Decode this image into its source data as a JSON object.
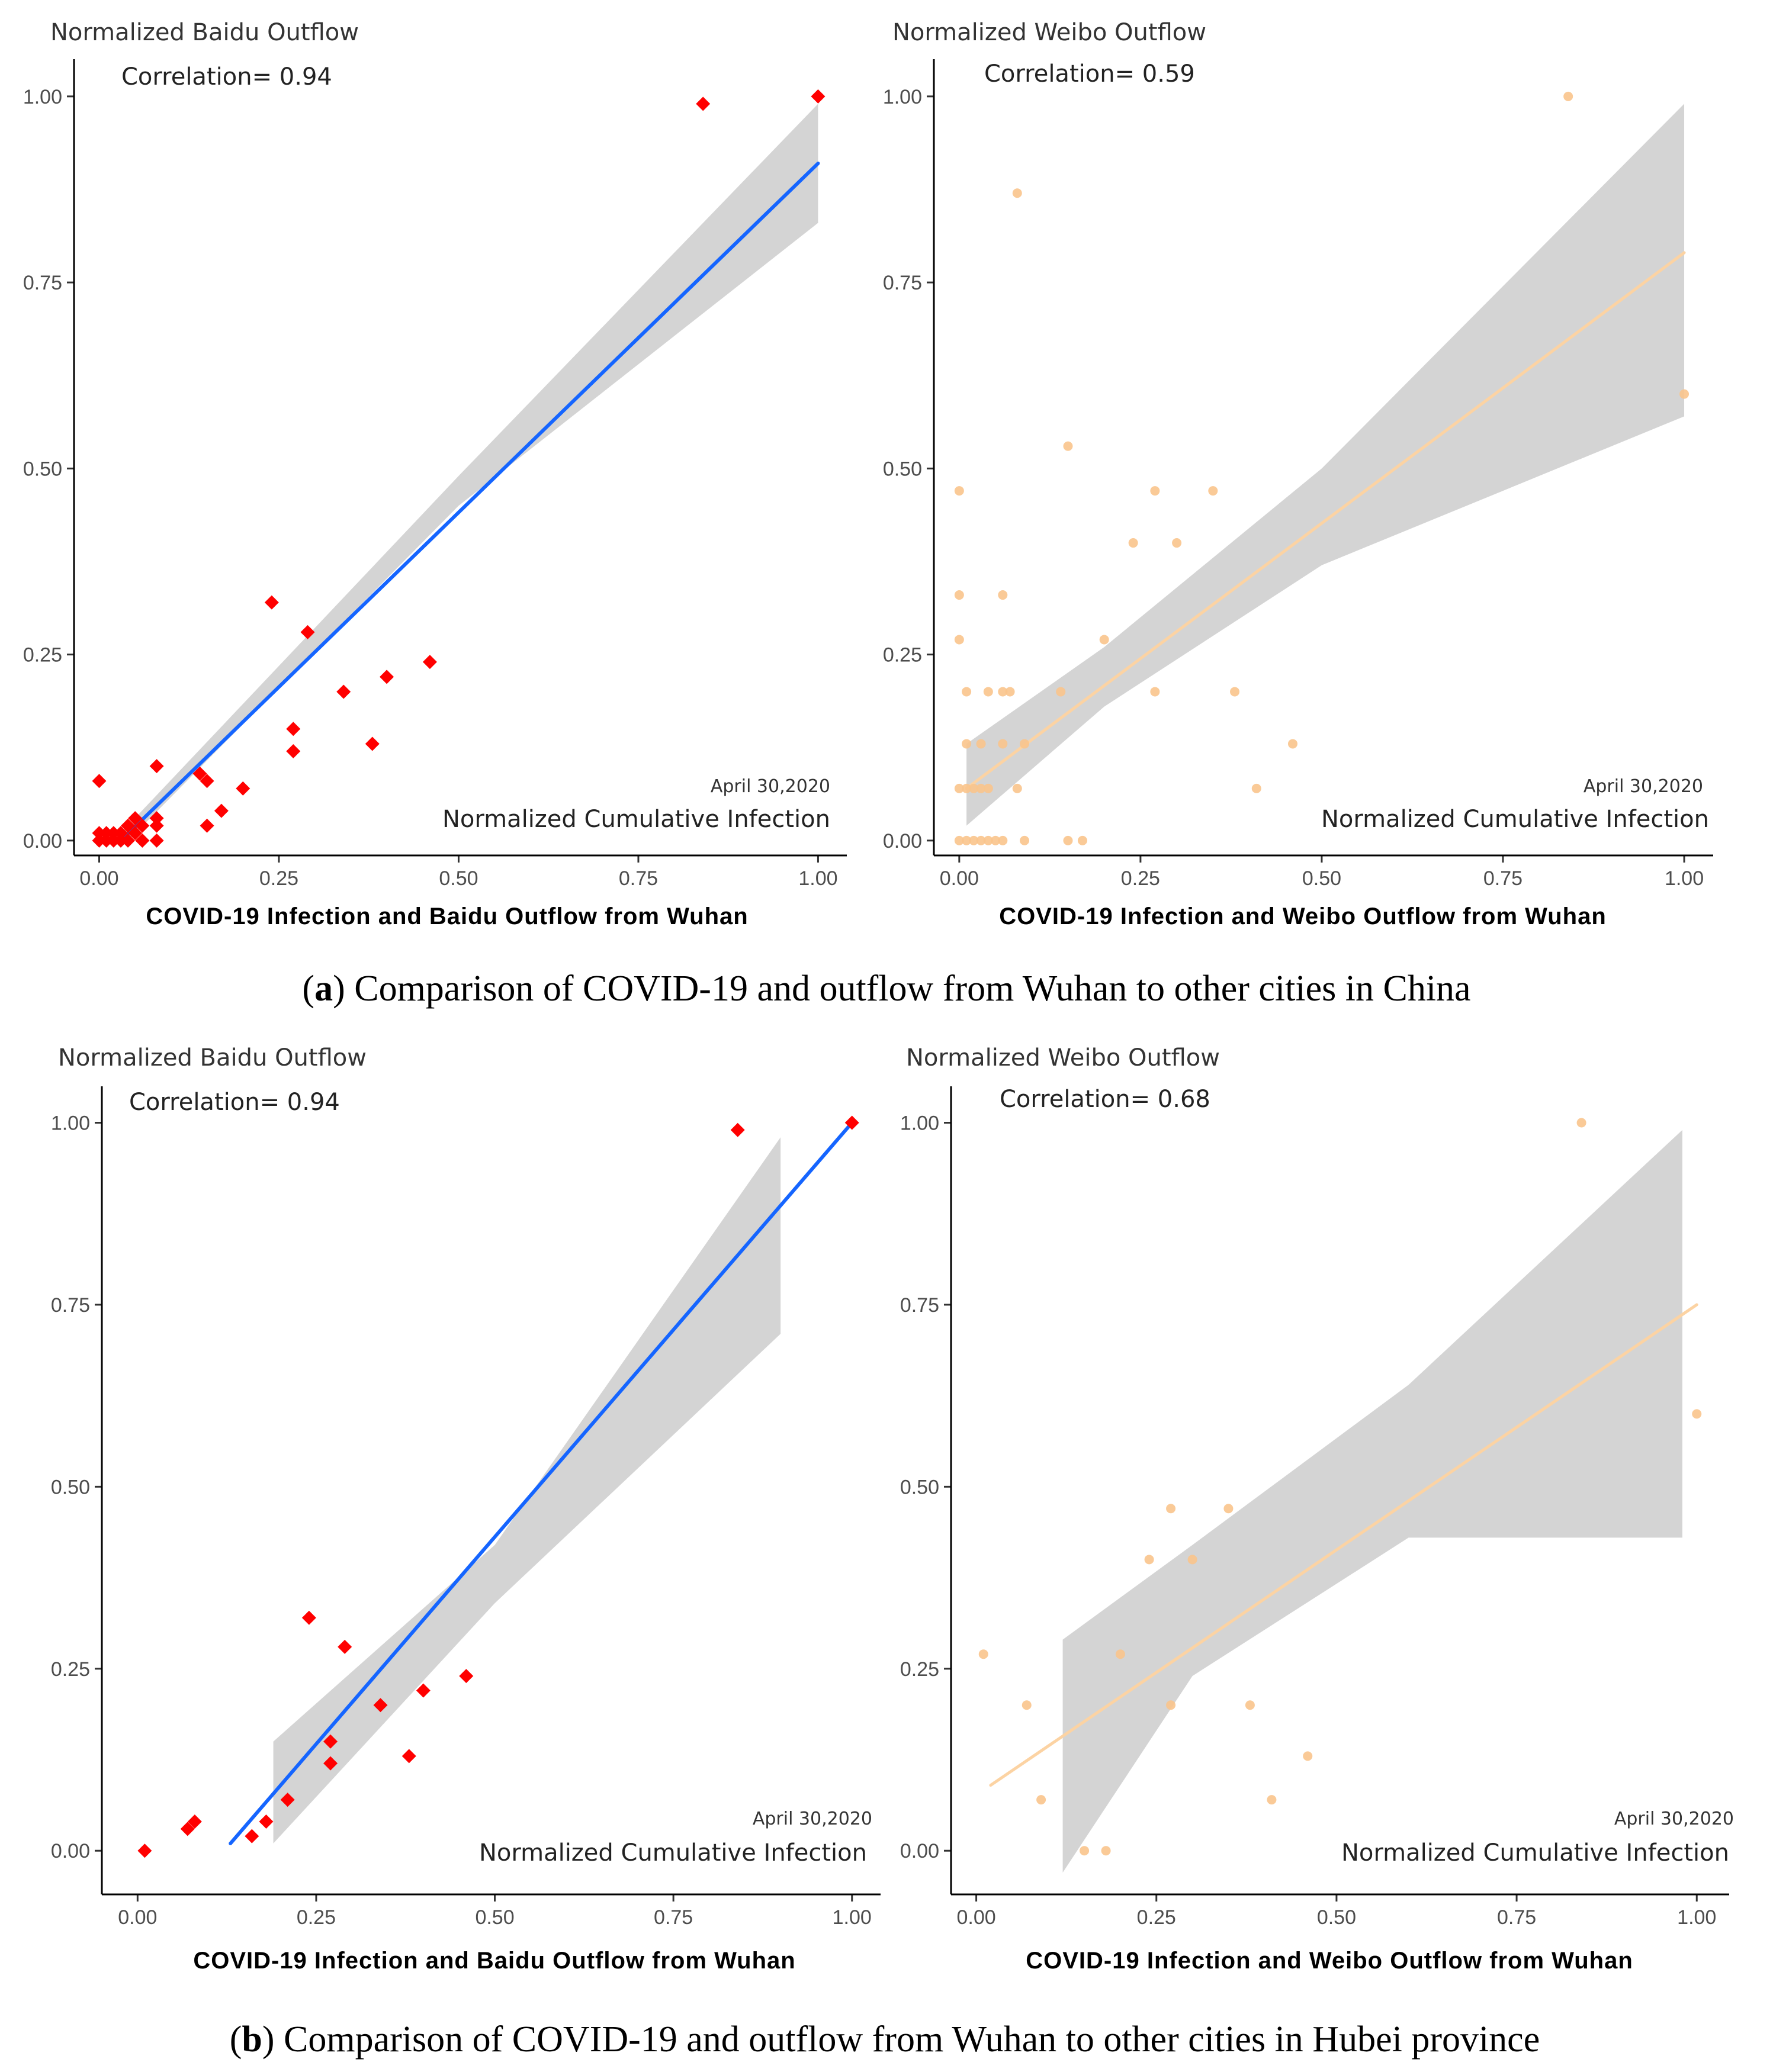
{
  "captions": {
    "a": {
      "open": "(",
      "letter": "a",
      "text": ") Comparison of COVID-19 and outflow from Wuhan to other cities in China"
    },
    "b": {
      "open": "(",
      "letter": "b",
      "text": ") Comparison of COVID-19 and outflow from Wuhan to other cities in Hubei province"
    }
  },
  "colors": {
    "baidu_point": "#ff0000",
    "baidu_line": "#1565ff",
    "weibo_point": "#f9c48c",
    "weibo_line": "#fcd3a3",
    "band": "#cccccc",
    "axis": "#000000"
  },
  "chart_data": [
    {
      "id": "a-baidu",
      "type": "scatter",
      "title": "Normalized Baidu Outflow",
      "correlation_label": "Correlation= 0.94",
      "date": "April 30,2020",
      "xlabel": "Normalized Cumulative Infection",
      "bottom_title": "COVID-19 Infection and Baidu Outflow from Wuhan",
      "xlim": [
        -0.035,
        1.04
      ],
      "ylim": [
        -0.02,
        1.05
      ],
      "xticks": [
        "0.00",
        "0.25",
        "0.50",
        "0.75",
        "1.00"
      ],
      "yticks": [
        "0.00",
        "0.25",
        "0.50",
        "0.75",
        "1.00"
      ],
      "marker": "diamond",
      "fit": {
        "x0": 0.03,
        "y0": 0.0,
        "x1": 1.0,
        "y1": 0.91
      },
      "band": [
        [
          0.03,
          -0.01,
          0.01
        ],
        [
          0.5,
          0.45,
          0.49
        ],
        [
          1.0,
          0.83,
          0.99
        ]
      ],
      "points": [
        [
          1.0,
          1.0
        ],
        [
          0.84,
          0.99
        ],
        [
          0.24,
          0.32
        ],
        [
          0.29,
          0.28
        ],
        [
          0.46,
          0.24
        ],
        [
          0.4,
          0.22
        ],
        [
          0.34,
          0.2
        ],
        [
          0.27,
          0.15
        ],
        [
          0.27,
          0.12
        ],
        [
          0.38,
          0.13
        ],
        [
          0.2,
          0.07
        ],
        [
          0.15,
          0.08
        ],
        [
          0.14,
          0.09
        ],
        [
          0.17,
          0.04
        ],
        [
          0.15,
          0.02
        ],
        [
          0.08,
          0.1
        ],
        [
          0.0,
          0.08
        ],
        [
          0.08,
          0.03
        ],
        [
          0.08,
          0.0
        ],
        [
          0.08,
          0.02
        ],
        [
          0.06,
          0.02
        ],
        [
          0.06,
          0.0
        ],
        [
          0.05,
          0.01
        ],
        [
          0.04,
          0.02
        ],
        [
          0.04,
          0.0
        ],
        [
          0.03,
          0.01
        ],
        [
          0.03,
          0.0
        ],
        [
          0.02,
          0.0
        ],
        [
          0.02,
          0.01
        ],
        [
          0.01,
          0.0
        ],
        [
          0.01,
          0.01
        ],
        [
          0.0,
          0.0
        ],
        [
          0.0,
          0.01
        ],
        [
          0.05,
          0.03
        ],
        [
          0.06,
          0.0
        ]
      ]
    },
    {
      "id": "a-weibo",
      "type": "scatter",
      "title": "Normalized Weibo Outflow",
      "correlation_label": "Correlation= 0.59",
      "date": "April 30,2020",
      "xlabel": "Normalized Cumulative Infection",
      "bottom_title": "COVID-19 Infection and Weibo Outflow from Wuhan",
      "xlim": [
        -0.035,
        1.04
      ],
      "ylim": [
        -0.02,
        1.05
      ],
      "xticks": [
        "0.00",
        "0.25",
        "0.50",
        "0.75",
        "1.00"
      ],
      "yticks": [
        "0.00",
        "0.25",
        "0.50",
        "0.75",
        "1.00"
      ],
      "marker": "circle",
      "fit": {
        "x0": 0.01,
        "y0": 0.07,
        "x1": 1.0,
        "y1": 0.79
      },
      "band": [
        [
          0.01,
          0.02,
          0.13
        ],
        [
          0.2,
          0.18,
          0.26
        ],
        [
          0.5,
          0.37,
          0.5
        ],
        [
          1.0,
          0.57,
          0.99
        ]
      ],
      "points": [
        [
          0.84,
          1.0
        ],
        [
          0.08,
          0.87
        ],
        [
          1.0,
          0.6
        ],
        [
          0.15,
          0.53
        ],
        [
          0.0,
          0.47
        ],
        [
          0.27,
          0.47
        ],
        [
          0.35,
          0.47
        ],
        [
          0.24,
          0.4
        ],
        [
          0.3,
          0.4
        ],
        [
          0.0,
          0.33
        ],
        [
          0.06,
          0.33
        ],
        [
          0.0,
          0.27
        ],
        [
          0.2,
          0.27
        ],
        [
          0.01,
          0.2
        ],
        [
          0.04,
          0.2
        ],
        [
          0.06,
          0.2
        ],
        [
          0.07,
          0.2
        ],
        [
          0.14,
          0.2
        ],
        [
          0.27,
          0.2
        ],
        [
          0.38,
          0.2
        ],
        [
          0.01,
          0.13
        ],
        [
          0.03,
          0.13
        ],
        [
          0.06,
          0.13
        ],
        [
          0.09,
          0.13
        ],
        [
          0.46,
          0.13
        ],
        [
          0.0,
          0.07
        ],
        [
          0.01,
          0.07
        ],
        [
          0.02,
          0.07
        ],
        [
          0.03,
          0.07
        ],
        [
          0.04,
          0.07
        ],
        [
          0.08,
          0.07
        ],
        [
          0.41,
          0.07
        ],
        [
          0.0,
          0.0
        ],
        [
          0.01,
          0.0
        ],
        [
          0.02,
          0.0
        ],
        [
          0.03,
          0.0
        ],
        [
          0.04,
          0.0
        ],
        [
          0.05,
          0.0
        ],
        [
          0.06,
          0.0
        ],
        [
          0.09,
          0.0
        ],
        [
          0.15,
          0.0
        ],
        [
          0.17,
          0.0
        ]
      ]
    },
    {
      "id": "b-baidu",
      "type": "scatter",
      "title": "Normalized Baidu Outflow",
      "correlation_label": "Correlation= 0.94",
      "date": "April 30,2020",
      "xlabel": "Normalized Cumulative Infection",
      "bottom_title": "COVID-19 Infection and Baidu Outflow from Wuhan",
      "xlim": [
        -0.05,
        1.04
      ],
      "ylim": [
        -0.06,
        1.05
      ],
      "xticks": [
        "0.00",
        "0.25",
        "0.50",
        "0.75",
        "1.00"
      ],
      "yticks": [
        "0.00",
        "0.25",
        "0.50",
        "0.75",
        "1.00"
      ],
      "marker": "diamond",
      "fit": {
        "x0": 0.13,
        "y0": 0.01,
        "x1": 1.0,
        "y1": 1.0
      },
      "band": [
        [
          0.19,
          0.01,
          0.15
        ],
        [
          0.5,
          0.34,
          0.42
        ],
        [
          0.9,
          0.71,
          0.98
        ]
      ],
      "points": [
        [
          1.0,
          1.0
        ],
        [
          0.84,
          0.99
        ],
        [
          0.24,
          0.32
        ],
        [
          0.29,
          0.28
        ],
        [
          0.46,
          0.24
        ],
        [
          0.4,
          0.22
        ],
        [
          0.34,
          0.2
        ],
        [
          0.27,
          0.15
        ],
        [
          0.27,
          0.12
        ],
        [
          0.38,
          0.13
        ],
        [
          0.21,
          0.07
        ],
        [
          0.18,
          0.04
        ],
        [
          0.16,
          0.02
        ],
        [
          0.08,
          0.04
        ],
        [
          0.07,
          0.03
        ],
        [
          0.01,
          0.0
        ]
      ]
    },
    {
      "id": "b-weibo",
      "type": "scatter",
      "title": "Normalized Weibo Outflow",
      "correlation_label": "Correlation= 0.68",
      "date": "April 30,2020",
      "xlabel": "Normalized Cumulative Infection",
      "bottom_title": "COVID-19 Infection and Weibo Outflow from Wuhan",
      "xlim": [
        -0.035,
        1.045
      ],
      "ylim": [
        -0.06,
        1.05
      ],
      "xticks": [
        "0.00",
        "0.25",
        "0.50",
        "0.75",
        "1.00"
      ],
      "yticks": [
        "0.00",
        "0.25",
        "0.50",
        "0.75",
        "1.00"
      ],
      "marker": "circle",
      "fit": {
        "x0": 0.02,
        "y0": 0.09,
        "x1": 1.0,
        "y1": 0.75
      },
      "band": [
        [
          0.12,
          -0.03,
          0.29
        ],
        [
          0.3,
          0.24,
          0.42
        ],
        [
          0.6,
          0.43,
          0.64
        ],
        [
          0.98,
          0.43,
          0.99
        ]
      ],
      "points": [
        [
          0.84,
          1.0
        ],
        [
          1.0,
          0.6
        ],
        [
          0.27,
          0.47
        ],
        [
          0.35,
          0.47
        ],
        [
          0.24,
          0.4
        ],
        [
          0.3,
          0.4
        ],
        [
          0.01,
          0.27
        ],
        [
          0.2,
          0.27
        ],
        [
          0.07,
          0.2
        ],
        [
          0.27,
          0.2
        ],
        [
          0.38,
          0.2
        ],
        [
          0.46,
          0.13
        ],
        [
          0.09,
          0.07
        ],
        [
          0.41,
          0.07
        ],
        [
          0.15,
          0.0
        ],
        [
          0.18,
          0.0
        ]
      ]
    }
  ]
}
